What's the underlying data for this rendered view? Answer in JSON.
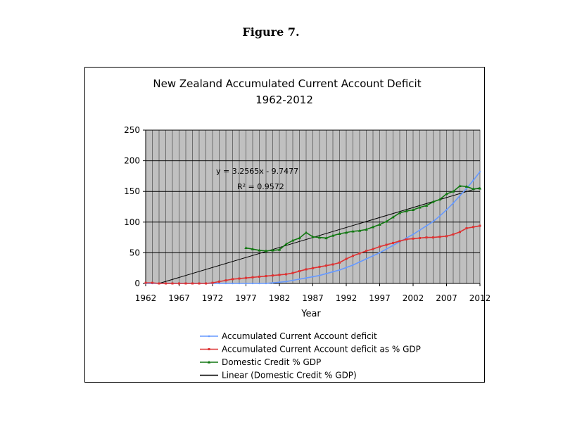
{
  "figure_caption": "Figure 7.",
  "colors": {
    "plot_bg": "#c0c0c0",
    "grid": "#000000",
    "accumulated": "#6699ff",
    "pct_gdp": "#dd3333",
    "credit": "#117711",
    "linear": "#000000"
  },
  "chart_data": {
    "type": "line",
    "title": "New Zealand Accumulated Current Account Deficit",
    "subtitle": "1962-2012",
    "xlabel": "Year",
    "ylabel": "",
    "xlim": [
      1962,
      2012
    ],
    "ylim": [
      0,
      250
    ],
    "x_ticks": [
      "1962",
      "1967",
      "1972",
      "1977",
      "1982",
      "1987",
      "1992",
      "1997",
      "2002",
      "2007",
      "2012"
    ],
    "y_ticks": [
      "0",
      "50",
      "100",
      "150",
      "200",
      "250"
    ],
    "grid": true,
    "legend_position": "bottom",
    "trendline": {
      "equation": "y = 3.2565x - 9.7477",
      "r_squared": "R² = 0.9572",
      "slope": 3.2565,
      "intercept": -9.7477,
      "x_start": 1962,
      "x_end": 2012
    },
    "series": [
      {
        "name": "Accumulated Current Account deficit",
        "color_key": "accumulated",
        "marker": "dot",
        "x": [
          1962,
          1963,
          1964,
          1965,
          1966,
          1967,
          1968,
          1969,
          1970,
          1971,
          1972,
          1973,
          1974,
          1975,
          1976,
          1977,
          1978,
          1979,
          1980,
          1981,
          1982,
          1983,
          1984,
          1985,
          1986,
          1987,
          1988,
          1989,
          1990,
          1991,
          1992,
          1993,
          1994,
          1995,
          1996,
          1997,
          1998,
          1999,
          2000,
          2001,
          2002,
          2003,
          2004,
          2005,
          2006,
          2007,
          2008,
          2009,
          2010,
          2011,
          2012
        ],
        "values": [
          0,
          0,
          0,
          0,
          0,
          0,
          0,
          0,
          0,
          0,
          0,
          0,
          0,
          0,
          0,
          0,
          0,
          0,
          0,
          1,
          2,
          3,
          5,
          7,
          9,
          11,
          13,
          16,
          19,
          22,
          26,
          30,
          35,
          40,
          45,
          50,
          56,
          62,
          68,
          74,
          80,
          87,
          94,
          101,
          110,
          120,
          131,
          143,
          155,
          168,
          182
        ]
      },
      {
        "name": "Accumulated Current Account deficit as % GDP",
        "color_key": "pct_gdp",
        "marker": "square",
        "x": [
          1962,
          1963,
          1964,
          1965,
          1966,
          1967,
          1968,
          1969,
          1970,
          1971,
          1972,
          1973,
          1974,
          1975,
          1976,
          1977,
          1978,
          1979,
          1980,
          1981,
          1982,
          1983,
          1984,
          1985,
          1986,
          1987,
          1988,
          1989,
          1990,
          1991,
          1992,
          1993,
          1994,
          1995,
          1996,
          1997,
          1998,
          1999,
          2000,
          2001,
          2002,
          2003,
          2004,
          2005,
          2006,
          2007,
          2008,
          2009,
          2010,
          2011,
          2012
        ],
        "values": [
          1,
          1,
          0,
          0,
          0,
          0,
          0,
          0,
          0,
          0,
          1,
          3,
          5,
          7,
          8,
          9,
          10,
          11,
          12,
          13,
          14,
          15,
          17,
          20,
          23,
          25,
          27,
          29,
          31,
          34,
          40,
          45,
          49,
          53,
          56,
          60,
          63,
          66,
          69,
          72,
          73,
          74,
          75,
          75,
          76,
          77,
          80,
          84,
          90,
          92,
          94
        ]
      },
      {
        "name": "Domestic Credit % GDP",
        "color_key": "credit",
        "marker": "triangle",
        "x": [
          1977,
          1978,
          1979,
          1980,
          1981,
          1982,
          1983,
          1984,
          1985,
          1986,
          1987,
          1988,
          1989,
          1990,
          1991,
          1992,
          1993,
          1994,
          1995,
          1996,
          1997,
          1998,
          1999,
          2000,
          2001,
          2002,
          2003,
          2004,
          2005,
          2006,
          2007,
          2008,
          2009,
          2010,
          2011,
          2012
        ],
        "values": [
          58,
          56,
          54,
          53,
          54,
          55,
          64,
          70,
          74,
          83,
          76,
          75,
          74,
          78,
          81,
          83,
          85,
          86,
          88,
          92,
          96,
          101,
          108,
          115,
          118,
          120,
          124,
          127,
          133,
          137,
          146,
          150,
          159,
          158,
          154,
          155
        ]
      },
      {
        "name": "Linear (Domestic Credit % GDP)",
        "color_key": "linear",
        "marker": "none",
        "x": [],
        "values": []
      }
    ]
  }
}
